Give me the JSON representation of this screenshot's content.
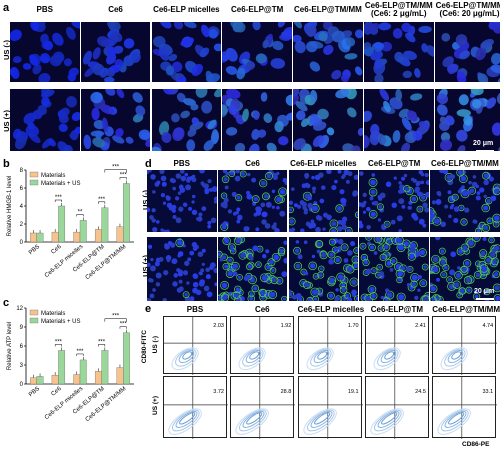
{
  "panels": {
    "a": {
      "letter": "a",
      "columns": [
        "PBS",
        "Ce6",
        "Ce6-ELP micelles",
        "Ce6-ELP@TM",
        "Ce6-ELP@TM/MM",
        "Ce6-ELP@TM/MM\n(Ce6: 2 μg/mL)",
        "Ce6-ELP@TM/MM\n(Ce6: 20 μg/mL)"
      ],
      "rows": [
        "US (-)",
        "US (+)"
      ],
      "scale_bar": "20 μm"
    },
    "b": {
      "letter": "b",
      "chart_data": {
        "type": "bar",
        "ylabel": "Relative HMGB-1 level",
        "categories": [
          "PBS",
          "Ce6",
          "Ce6-ELP micelles",
          "Ce6-ELP@TM",
          "Ce6-ELP@TM/MM"
        ],
        "series": [
          {
            "name": "Materials",
            "values": [
              1.0,
              1.1,
              1.1,
              1.4,
              1.7
            ],
            "color": "#f6c28e"
          },
          {
            "name": "Materials + US",
            "values": [
              1.0,
              4.0,
              2.4,
              3.8,
              6.5
            ],
            "color": "#9bd79b"
          }
        ],
        "ylim": [
          0,
          8
        ],
        "yticks": [
          0,
          2,
          4,
          6,
          8
        ],
        "significance": [
          "***",
          "**",
          "***",
          "***",
          "***",
          "***"
        ]
      }
    },
    "c": {
      "letter": "c",
      "chart_data": {
        "type": "bar",
        "ylabel": "Relative ATP level",
        "categories": [
          "PBS",
          "Ce6",
          "Ce6-ELP micelles",
          "Ce6-ELP@TM",
          "Ce6-ELP@TM/MM"
        ],
        "series": [
          {
            "name": "Materials",
            "values": [
              1.0,
              1.4,
              1.5,
              2.0,
              2.6
            ],
            "color": "#f6c28e"
          },
          {
            "name": "Materials + US",
            "values": [
              1.2,
              5.3,
              3.8,
              5.3,
              8.1
            ],
            "color": "#9bd79b"
          }
        ],
        "ylim": [
          0,
          12
        ],
        "yticks": [
          0,
          3,
          6,
          9,
          12
        ],
        "significance": [
          "***",
          "***",
          "***",
          "***",
          "***",
          "***"
        ]
      }
    },
    "d": {
      "letter": "d",
      "columns": [
        "PBS",
        "Ce6",
        "Ce6-ELP micelles",
        "Ce6-ELP@TM",
        "Ce6-ELP@TM/MM"
      ],
      "rows": [
        "US (-)",
        "US (+)"
      ],
      "scale_bar": "20 μm"
    },
    "e": {
      "letter": "e",
      "columns": [
        "PBS",
        "Ce6",
        "Ce6-ELP micelles",
        "Ce6-ELP@TM",
        "Ce6-ELP@TM/MM"
      ],
      "rows": [
        "US (-)",
        "US (+)"
      ],
      "ylabel": "CD80-FITC",
      "xlabel": "CD86-PE",
      "values_top": [
        "2.03",
        "1.92",
        "1.70",
        "2.41",
        "4.74"
      ],
      "values_bottom": [
        "3.72",
        "28.8",
        "19.1",
        "24.5",
        "33.1"
      ]
    }
  }
}
